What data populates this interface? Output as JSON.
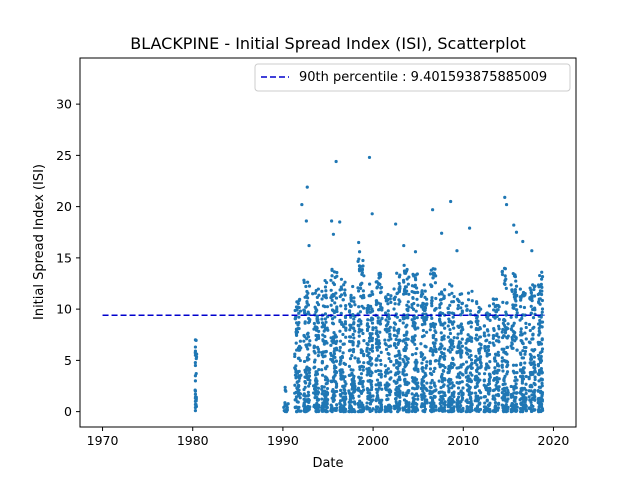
{
  "chart_data": {
    "type": "scatter",
    "title": "BLACKPINE - Initial Spread Index (ISI), Scatterplot",
    "xlabel": "Date",
    "ylabel": "Initial Spread Index (ISI)",
    "xlim": [
      1967.5,
      2022.5
    ],
    "ylim": [
      -1.5,
      34.5
    ],
    "xticks": [
      1970,
      1980,
      1990,
      2000,
      2010,
      2020
    ],
    "yticks": [
      0,
      5,
      10,
      15,
      20,
      25,
      30
    ],
    "grid": false,
    "legend_position": "top-right",
    "point_color": "#1f77b4",
    "reference_line": {
      "label": "90th percentile : 9.401593875885009",
      "y": 9.401593875885009,
      "x_range": [
        1970,
        2019
      ],
      "color": "#0000cc",
      "style": "dashed"
    },
    "series": [
      {
        "x": [
          1980.3,
          1980.3,
          1980.3,
          1980.3,
          1980.3,
          1980.3,
          1980.3,
          1980.3,
          1980.3,
          1980.3,
          1980.3,
          1980.3,
          1980.3,
          1980.3,
          1992.1,
          1992.6,
          1992.7,
          1992.9,
          1993.3,
          1995.4,
          1995.6,
          1995.9,
          1996.3,
          1998.4,
          1998.5,
          1999.6,
          1999.9,
          2002.5,
          2003.4,
          2004.7,
          2006.6,
          2007.6,
          2008.6,
          2009.3,
          2010.7,
          2014.6,
          2014.8,
          2015.6,
          2015.9,
          2016.6,
          2017.6,
          2018.7
        ],
        "y": [
          7.0,
          6.3,
          5.9,
          5.5,
          4.5,
          3.5,
          3.0,
          2.0,
          1.7,
          1.3,
          1.0,
          0.7,
          0.4,
          0.1,
          20.2,
          18.6,
          21.9,
          16.2,
          11.5,
          18.6,
          17.3,
          24.4,
          18.5,
          16.5,
          15.6,
          24.8,
          19.3,
          18.3,
          16.2,
          15.6,
          19.7,
          17.4,
          20.5,
          15.7,
          17.9,
          20.9,
          20.2,
          18.2,
          17.5,
          16.6,
          15.7,
          13.6
        ]
      }
    ],
    "dense_clusters": [
      {
        "x_range": [
          1980.25,
          1980.45
        ],
        "y_range": [
          0,
          7.0
        ],
        "count": 14
      },
      {
        "x_range": [
          1990.0,
          1990.6
        ],
        "y_range": [
          0,
          2.6
        ],
        "count": 18
      },
      {
        "x_range": [
          1991.3,
          1992.0
        ],
        "y_range": [
          0,
          11.0
        ],
        "count": 90
      },
      {
        "x_range": [
          1992.3,
          1993.0
        ],
        "y_range": [
          0,
          13.0
        ],
        "count": 110
      },
      {
        "x_range": [
          1993.4,
          1994.0
        ],
        "y_range": [
          0,
          12.0
        ],
        "count": 100
      },
      {
        "x_range": [
          1994.3,
          1995.0
        ],
        "y_range": [
          0,
          13.5
        ],
        "count": 110
      },
      {
        "x_range": [
          1995.3,
          1996.0
        ],
        "y_range": [
          0,
          14.5
        ],
        "count": 115
      },
      {
        "x_range": [
          1996.3,
          1997.0
        ],
        "y_range": [
          0,
          13.0
        ],
        "count": 110
      },
      {
        "x_range": [
          1997.3,
          1998.0
        ],
        "y_range": [
          0,
          13.0
        ],
        "count": 110
      },
      {
        "x_range": [
          1998.3,
          1999.0
        ],
        "y_range": [
          0,
          15.0
        ],
        "count": 115
      },
      {
        "x_range": [
          1999.3,
          2000.0
        ],
        "y_range": [
          0,
          12.5
        ],
        "count": 110
      },
      {
        "x_range": [
          2000.3,
          2001.0
        ],
        "y_range": [
          0,
          13.5
        ],
        "count": 110
      },
      {
        "x_range": [
          2001.3,
          2002.0
        ],
        "y_range": [
          0,
          11.5
        ],
        "count": 100
      },
      {
        "x_range": [
          2002.3,
          2003.0
        ],
        "y_range": [
          0,
          14.0
        ],
        "count": 110
      },
      {
        "x_range": [
          2003.3,
          2004.0
        ],
        "y_range": [
          0,
          14.5
        ],
        "count": 115
      },
      {
        "x_range": [
          2004.3,
          2005.0
        ],
        "y_range": [
          0,
          13.5
        ],
        "count": 110
      },
      {
        "x_range": [
          2005.3,
          2006.0
        ],
        "y_range": [
          0,
          12.5
        ],
        "count": 105
      },
      {
        "x_range": [
          2006.3,
          2007.0
        ],
        "y_range": [
          0,
          14.0
        ],
        "count": 110
      },
      {
        "x_range": [
          2007.3,
          2008.0
        ],
        "y_range": [
          0,
          12.0
        ],
        "count": 105
      },
      {
        "x_range": [
          2008.3,
          2009.0
        ],
        "y_range": [
          0,
          12.5
        ],
        "count": 105
      },
      {
        "x_range": [
          2009.3,
          2010.0
        ],
        "y_range": [
          0,
          11.5
        ],
        "count": 100
      },
      {
        "x_range": [
          2010.3,
          2011.0
        ],
        "y_range": [
          0,
          12.0
        ],
        "count": 105
      },
      {
        "x_range": [
          2011.3,
          2012.0
        ],
        "y_range": [
          0,
          11.0
        ],
        "count": 95
      },
      {
        "x_range": [
          2012.3,
          2013.0
        ],
        "y_range": [
          0,
          10.5
        ],
        "count": 90
      },
      {
        "x_range": [
          2013.3,
          2014.0
        ],
        "y_range": [
          0,
          11.0
        ],
        "count": 95
      },
      {
        "x_range": [
          2014.3,
          2015.0
        ],
        "y_range": [
          0,
          14.0
        ],
        "count": 110
      },
      {
        "x_range": [
          2015.3,
          2016.0
        ],
        "y_range": [
          0,
          13.5
        ],
        "count": 110
      },
      {
        "x_range": [
          2016.3,
          2017.0
        ],
        "y_range": [
          0,
          12.0
        ],
        "count": 105
      },
      {
        "x_range": [
          2017.3,
          2018.0
        ],
        "y_range": [
          0,
          12.5
        ],
        "count": 105
      },
      {
        "x_range": [
          2018.3,
          2018.8
        ],
        "y_range": [
          0,
          13.5
        ],
        "count": 110
      }
    ]
  }
}
